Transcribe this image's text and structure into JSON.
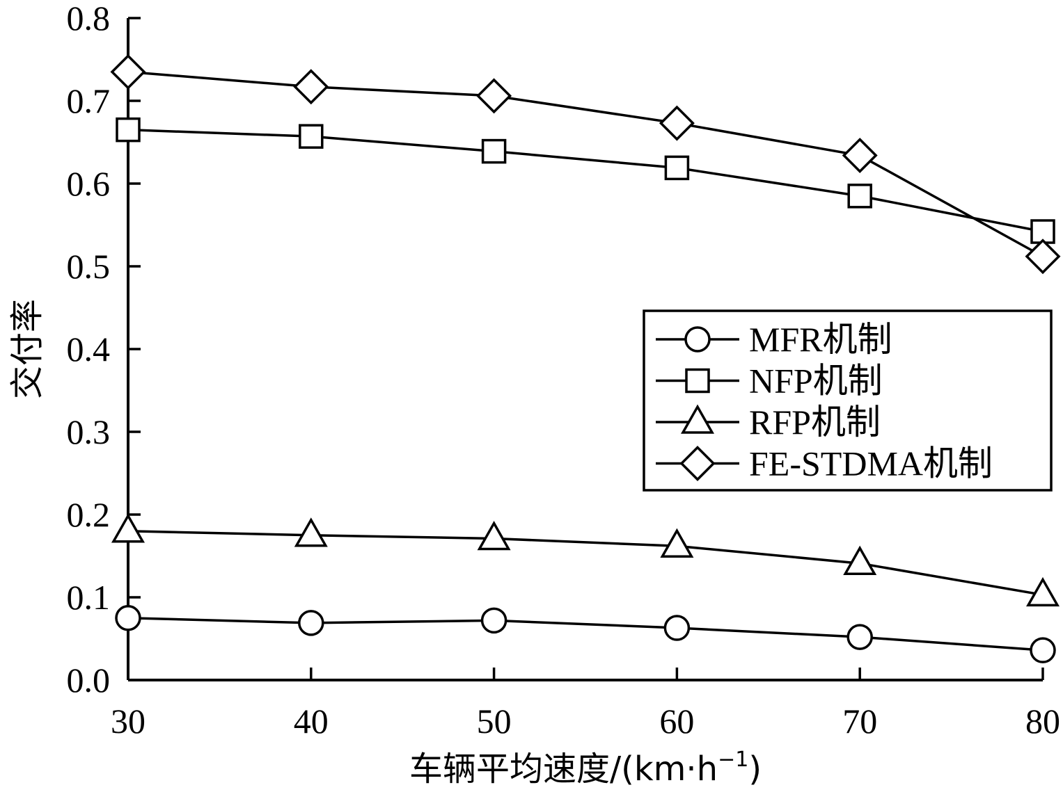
{
  "chart_data": {
    "type": "line",
    "xlabel": "车辆平均速度/(km·h",
    "xlabel_sup": "−1",
    "xlabel_close": ")",
    "ylabel": "交付率",
    "xlim": [
      30,
      80
    ],
    "ylim": [
      0.0,
      0.8
    ],
    "x_ticks": [
      30,
      40,
      50,
      60,
      70,
      80
    ],
    "y_ticks": [
      "0.0",
      "0.1",
      "0.2",
      "0.3",
      "0.4",
      "0.5",
      "0.6",
      "0.7",
      "0.8"
    ],
    "grid": false,
    "legend_position": "center-right",
    "x": [
      30,
      40,
      50,
      60,
      70,
      80
    ],
    "series": [
      {
        "name": "MFR机制",
        "marker": "circle",
        "values": [
          0.075,
          0.069,
          0.072,
          0.063,
          0.052,
          0.036
        ]
      },
      {
        "name": "NFP机制",
        "marker": "square",
        "values": [
          0.665,
          0.657,
          0.639,
          0.619,
          0.585,
          0.542
        ]
      },
      {
        "name": "RFP机制",
        "marker": "triangle",
        "values": [
          0.18,
          0.175,
          0.171,
          0.162,
          0.141,
          0.103
        ]
      },
      {
        "name": "FE-STDMA机制",
        "marker": "diamond",
        "values": [
          0.735,
          0.717,
          0.706,
          0.673,
          0.634,
          0.512
        ]
      }
    ],
    "line_color": "#000000"
  }
}
